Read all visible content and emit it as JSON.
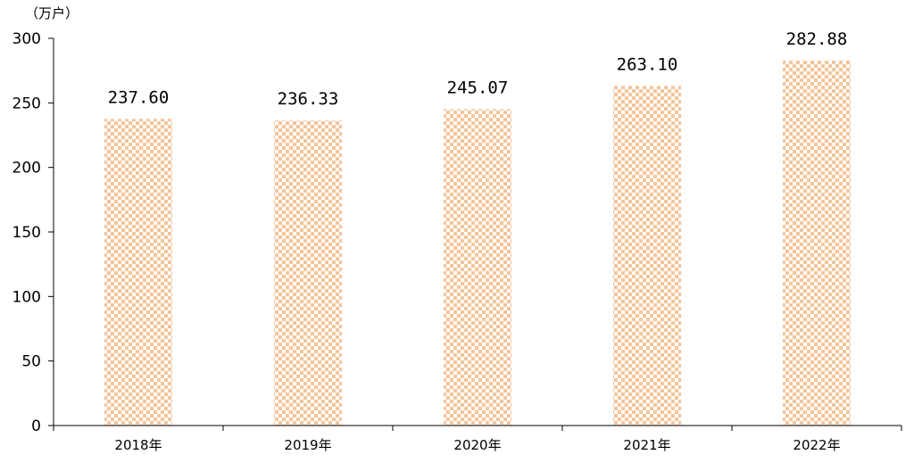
{
  "chart_data": {
    "type": "bar",
    "unit": "（万户）",
    "categories": [
      "2018年",
      "2019年",
      "2020年",
      "2021年",
      "2022年"
    ],
    "values": [
      237.6,
      236.33,
      245.07,
      263.1,
      282.88
    ],
    "value_labels": [
      "237.60",
      "236.33",
      "245.07",
      "263.10",
      "282.88"
    ],
    "ylim": [
      0,
      300
    ],
    "yticks": [
      0,
      50,
      100,
      150,
      200,
      250,
      300
    ],
    "grid": false,
    "legend": "none",
    "bar_pattern_color": "#f5c49a",
    "bar_background_color": "#ffffff",
    "axis_color": "#000000"
  }
}
